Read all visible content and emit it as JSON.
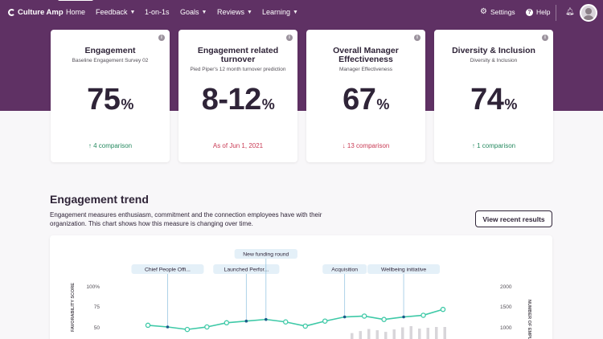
{
  "nav": {
    "logo": "Culture Amp",
    "items": [
      {
        "label": "Home",
        "dropdown": false,
        "active": true
      },
      {
        "label": "Feedback",
        "dropdown": true
      },
      {
        "label": "1-on-1s",
        "dropdown": false
      },
      {
        "label": "Goals",
        "dropdown": true
      },
      {
        "label": "Reviews",
        "dropdown": true
      },
      {
        "label": "Learning",
        "dropdown": true
      }
    ],
    "settings": "Settings",
    "help": "Help",
    "icons": {
      "settings": "gear-icon",
      "help": "help-icon",
      "notifications": "bell-icon"
    }
  },
  "cards": [
    {
      "title": "Engagement",
      "subtitle": "Baseline Engagement Survey 02",
      "value": "75",
      "unit": "%",
      "footer": "4 comparison",
      "arrow": "↑",
      "trend": "up"
    },
    {
      "title": "Engagement related turnover",
      "subtitle": "Pied Piper's 12 month turnover prediction",
      "value": "8-12",
      "unit": "%",
      "footer": "As of Jun 1, 2021",
      "arrow": "",
      "trend": "neutral"
    },
    {
      "title": "Overall Manager Effectiveness",
      "subtitle": "Manager Effectiveness",
      "value": "67",
      "unit": "%",
      "footer": "13 comparison",
      "arrow": "↓",
      "trend": "down"
    },
    {
      "title": "Diversity & Inclusion",
      "subtitle": "Diversity & Inclusion",
      "value": "74",
      "unit": "%",
      "footer": "1 comparison",
      "arrow": "↑",
      "trend": "up"
    }
  ],
  "trend": {
    "title": "Engagement trend",
    "description": "Engagement measures enthusiasm, commitment and the connection employees have with their organization. This chart shows how this measure is changing over time.",
    "button": "View recent results"
  },
  "colors": {
    "brand": "#5f3164",
    "line": "#3ec9a7",
    "marker": "#1a5a8a",
    "positive": "#268a60",
    "negative": "#c93b55",
    "bars": "#d8d6da"
  },
  "chart_data": {
    "type": "line",
    "y_left_ticks": [
      "100%",
      "75",
      "50"
    ],
    "y_right_ticks": [
      "2000",
      "1500",
      "1000"
    ],
    "y_left_label": "FAVORABILITY SCORE",
    "y_right_label": "NUMBER OF EMPLOYEES",
    "ylim_left": [
      0,
      100
    ],
    "ylim_right": [
      0,
      2000
    ],
    "series": [
      {
        "values": [
          52,
          50,
          47,
          50,
          55,
          57,
          59,
          56,
          51,
          57,
          62,
          63,
          59,
          62,
          64,
          71
        ]
      }
    ],
    "markers": [
      1,
      5,
      6,
      10,
      13
    ],
    "bars": [
      850,
      900,
      950,
      920,
      880,
      940,
      990,
      1020,
      960,
      980,
      1000,
      1000
    ],
    "annotations": [
      {
        "label": "Chief People Offi...",
        "at": 1
      },
      {
        "label": "Launched Perfor...",
        "at": 5
      },
      {
        "label": "New funding round",
        "at": 6
      },
      {
        "label": "Acquisition",
        "at": 10
      },
      {
        "label": "Wellbeing initiative",
        "at": 13
      }
    ]
  }
}
